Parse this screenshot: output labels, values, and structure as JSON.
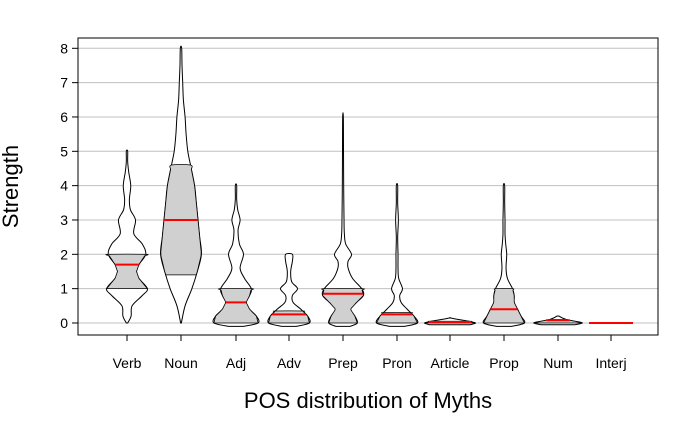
{
  "chart_data": {
    "type": "violin",
    "title": "",
    "xlabel": "POS distribution of Myths",
    "ylabel": "Strength",
    "ylim": [
      -0.35,
      8.3
    ],
    "yticks": [
      0,
      1,
      2,
      3,
      4,
      5,
      6,
      7,
      8
    ],
    "grid": "horizontal",
    "categories": [
      "Verb",
      "Noun",
      "Adj",
      "Adv",
      "Prep",
      "Pron",
      "Article",
      "Prop",
      "Num",
      "Interj"
    ],
    "colors": {
      "box": "#d0d0d0",
      "median": "#ff0000",
      "grid": "#c0c0c0",
      "outline": "#000000"
    },
    "violins": [
      {
        "category": "Verb",
        "min": 0,
        "max": 5,
        "q1": 1.0,
        "median": 1.7,
        "q3": 2.0,
        "density": [
          [
            0,
            0.02
          ],
          [
            0.2,
            0.12
          ],
          [
            0.5,
            0.15
          ],
          [
            0.8,
            0.45
          ],
          [
            1.0,
            0.6
          ],
          [
            1.3,
            0.35
          ],
          [
            1.5,
            0.28
          ],
          [
            1.7,
            0.35
          ],
          [
            2.0,
            0.55
          ],
          [
            2.3,
            0.45
          ],
          [
            2.6,
            0.2
          ],
          [
            3.0,
            0.25
          ],
          [
            3.3,
            0.1
          ],
          [
            3.6,
            0.07
          ],
          [
            4.0,
            0.11
          ],
          [
            4.4,
            0.05
          ],
          [
            4.7,
            0.02
          ],
          [
            5.0,
            0.02
          ]
        ]
      },
      {
        "category": "Noun",
        "min": 0,
        "max": 8,
        "q1": 1.4,
        "median": 3.0,
        "q3": 4.6,
        "density": [
          [
            0,
            0.01
          ],
          [
            0.5,
            0.12
          ],
          [
            1.0,
            0.32
          ],
          [
            1.5,
            0.48
          ],
          [
            2.0,
            0.6
          ],
          [
            2.5,
            0.55
          ],
          [
            3.0,
            0.5
          ],
          [
            3.5,
            0.45
          ],
          [
            4.0,
            0.4
          ],
          [
            4.6,
            0.28
          ],
          [
            5.0,
            0.2
          ],
          [
            5.5,
            0.15
          ],
          [
            6.0,
            0.12
          ],
          [
            6.5,
            0.07
          ],
          [
            7.0,
            0.05
          ],
          [
            7.5,
            0.03
          ],
          [
            8.0,
            0.02
          ]
        ]
      },
      {
        "category": "Adj",
        "min": 0,
        "max": 4,
        "q1": 0.0,
        "median": 0.6,
        "q3": 1.0,
        "density": [
          [
            -0.1,
            0.2
          ],
          [
            0.0,
            0.65
          ],
          [
            0.2,
            0.6
          ],
          [
            0.4,
            0.4
          ],
          [
            0.6,
            0.3
          ],
          [
            0.8,
            0.4
          ],
          [
            1.0,
            0.45
          ],
          [
            1.3,
            0.25
          ],
          [
            1.6,
            0.12
          ],
          [
            2.0,
            0.22
          ],
          [
            2.3,
            0.1
          ],
          [
            2.7,
            0.06
          ],
          [
            3.0,
            0.12
          ],
          [
            3.3,
            0.05
          ],
          [
            3.6,
            0.02
          ],
          [
            4.0,
            0.02
          ]
        ]
      },
      {
        "category": "Adv",
        "min": 0,
        "max": 2,
        "q1": 0.0,
        "median": 0.25,
        "q3": 0.35,
        "density": [
          [
            -0.1,
            0.2
          ],
          [
            0.0,
            0.6
          ],
          [
            0.2,
            0.55
          ],
          [
            0.4,
            0.35
          ],
          [
            0.6,
            0.12
          ],
          [
            0.8,
            0.1
          ],
          [
            1.0,
            0.25
          ],
          [
            1.2,
            0.08
          ],
          [
            1.5,
            0.05
          ],
          [
            1.8,
            0.1
          ],
          [
            2.0,
            0.1
          ]
        ]
      },
      {
        "category": "Prep",
        "min": 0,
        "max": 6,
        "q1": 0.0,
        "median": 0.85,
        "q3": 1.0,
        "density": [
          [
            -0.1,
            0.2
          ],
          [
            0.0,
            0.42
          ],
          [
            0.2,
            0.35
          ],
          [
            0.4,
            0.22
          ],
          [
            0.6,
            0.4
          ],
          [
            0.8,
            0.6
          ],
          [
            1.0,
            0.55
          ],
          [
            1.3,
            0.28
          ],
          [
            1.6,
            0.15
          ],
          [
            1.8,
            0.15
          ],
          [
            2.0,
            0.25
          ],
          [
            2.3,
            0.08
          ],
          [
            2.6,
            0.04
          ],
          [
            3.0,
            0.03
          ],
          [
            4.0,
            0.02
          ],
          [
            5.0,
            0.015
          ],
          [
            6.0,
            0.01
          ]
        ]
      },
      {
        "category": "Pron",
        "min": 0,
        "max": 4,
        "q1": 0.0,
        "median": 0.25,
        "q3": 0.3,
        "density": [
          [
            -0.1,
            0.2
          ],
          [
            0.0,
            0.6
          ],
          [
            0.2,
            0.5
          ],
          [
            0.4,
            0.3
          ],
          [
            0.6,
            0.12
          ],
          [
            0.8,
            0.08
          ],
          [
            1.0,
            0.16
          ],
          [
            1.3,
            0.05
          ],
          [
            1.6,
            0.03
          ],
          [
            2.0,
            0.03
          ],
          [
            2.5,
            0.02
          ],
          [
            3.0,
            0.04
          ],
          [
            3.5,
            0.02
          ],
          [
            4.0,
            0.02
          ]
        ]
      },
      {
        "category": "Article",
        "min": 0,
        "max": 0.15,
        "q1": 0.0,
        "median": 0.03,
        "q3": 0.05,
        "density": [
          [
            -0.05,
            0.6
          ],
          [
            0.0,
            0.75
          ],
          [
            0.05,
            0.55
          ],
          [
            0.1,
            0.25
          ],
          [
            0.15,
            0.0
          ]
        ]
      },
      {
        "category": "Prop",
        "min": 0,
        "max": 4,
        "q1": 0.0,
        "median": 0.4,
        "q3": 1.0,
        "density": [
          [
            -0.1,
            0.2
          ],
          [
            0.0,
            0.6
          ],
          [
            0.2,
            0.5
          ],
          [
            0.4,
            0.4
          ],
          [
            0.6,
            0.3
          ],
          [
            0.8,
            0.3
          ],
          [
            1.0,
            0.25
          ],
          [
            1.3,
            0.1
          ],
          [
            1.6,
            0.06
          ],
          [
            2.0,
            0.08
          ],
          [
            2.3,
            0.05
          ],
          [
            2.6,
            0.03
          ],
          [
            3.0,
            0.03
          ],
          [
            3.5,
            0.02
          ],
          [
            4.0,
            0.02
          ]
        ]
      },
      {
        "category": "Num",
        "min": 0,
        "max": 0.2,
        "q1": 0.0,
        "median": 0.08,
        "q3": 0.1,
        "density": [
          [
            -0.05,
            0.5
          ],
          [
            0.0,
            0.72
          ],
          [
            0.05,
            0.5
          ],
          [
            0.1,
            0.25
          ],
          [
            0.15,
            0.12
          ],
          [
            0.2,
            0.03
          ]
        ]
      },
      {
        "category": "Interj",
        "min": 0,
        "max": 0,
        "q1": 0.0,
        "median": 0.0,
        "q3": 0.0,
        "density": []
      }
    ]
  }
}
